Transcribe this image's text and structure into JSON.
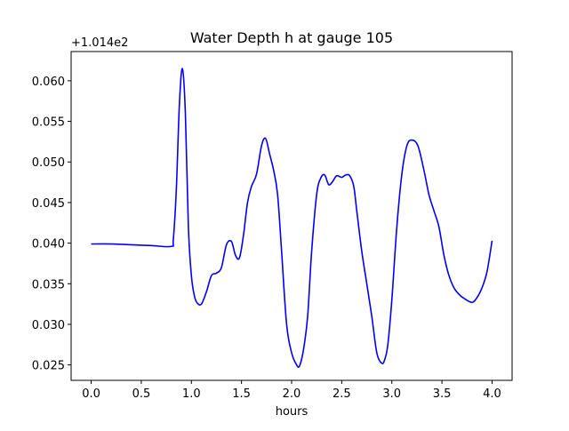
{
  "chart_data": {
    "type": "line",
    "title": "Water Depth h at gauge 105",
    "xlabel": "hours",
    "ylabel": "",
    "y_offset_label": "+1.014e2",
    "xlim": [
      -0.2,
      4.2
    ],
    "ylim": [
      0.0231,
      0.0636
    ],
    "x_ticks": [
      0.0,
      0.5,
      1.0,
      1.5,
      2.0,
      2.5,
      3.0,
      3.5,
      4.0
    ],
    "x_tick_labels": [
      "0.0",
      "0.5",
      "1.0",
      "1.5",
      "2.0",
      "2.5",
      "3.0",
      "3.5",
      "4.0"
    ],
    "y_ticks": [
      0.025,
      0.03,
      0.035,
      0.04,
      0.045,
      0.05,
      0.055,
      0.06
    ],
    "y_tick_labels": [
      "0.025",
      "0.030",
      "0.035",
      "0.040",
      "0.045",
      "0.050",
      "0.055",
      "0.060"
    ],
    "grid": false,
    "series": [
      {
        "color": "#0000ff",
        "x": [
          0.0,
          0.2,
          0.4,
          0.6,
          0.8,
          0.82,
          0.85,
          0.88,
          0.91,
          0.94,
          0.97,
          1.0,
          1.03,
          1.06,
          1.1,
          1.15,
          1.2,
          1.25,
          1.3,
          1.35,
          1.4,
          1.44,
          1.48,
          1.52,
          1.56,
          1.6,
          1.65,
          1.7,
          1.74,
          1.78,
          1.82,
          1.86,
          1.9,
          1.95,
          2.0,
          2.05,
          2.08,
          2.12,
          2.16,
          2.2,
          2.25,
          2.29,
          2.33,
          2.37,
          2.41,
          2.45,
          2.5,
          2.54,
          2.58,
          2.62,
          2.65,
          2.7,
          2.75,
          2.8,
          2.85,
          2.9,
          2.93,
          2.96,
          3.0,
          3.05,
          3.1,
          3.15,
          3.2,
          3.26,
          3.32,
          3.37,
          3.42,
          3.47,
          3.52,
          3.57,
          3.62,
          3.67,
          3.72,
          3.8,
          3.85,
          3.9,
          3.95,
          4.0
        ],
        "y": [
          0.0399,
          0.0399,
          0.0398,
          0.0397,
          0.0396,
          0.0405,
          0.0467,
          0.057,
          0.0615,
          0.056,
          0.042,
          0.036,
          0.0335,
          0.0326,
          0.0325,
          0.034,
          0.036,
          0.0363,
          0.037,
          0.0398,
          0.0402,
          0.0385,
          0.0382,
          0.041,
          0.045,
          0.047,
          0.0485,
          0.052,
          0.0529,
          0.051,
          0.049,
          0.046,
          0.039,
          0.03,
          0.0265,
          0.025,
          0.0249,
          0.027,
          0.031,
          0.039,
          0.046,
          0.048,
          0.0484,
          0.0472,
          0.0476,
          0.0483,
          0.0481,
          0.0484,
          0.0483,
          0.047,
          0.044,
          0.039,
          0.035,
          0.031,
          0.0265,
          0.0252,
          0.0257,
          0.0275,
          0.033,
          0.042,
          0.0485,
          0.052,
          0.0527,
          0.052,
          0.049,
          0.046,
          0.044,
          0.042,
          0.0385,
          0.036,
          0.0345,
          0.0337,
          0.0332,
          0.0327,
          0.0333,
          0.0345,
          0.0365,
          0.0403
        ]
      }
    ]
  }
}
